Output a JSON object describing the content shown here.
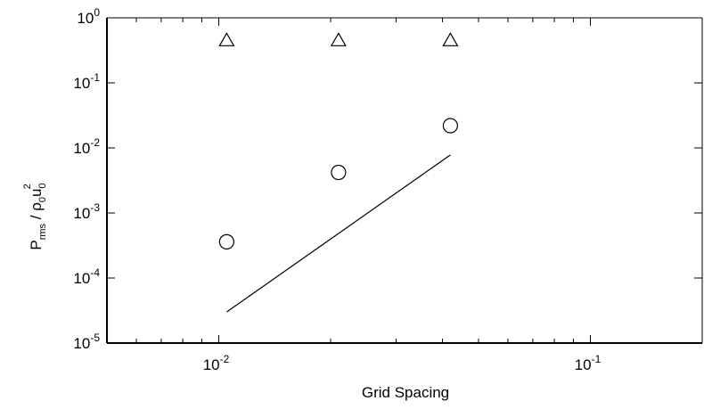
{
  "chart_data": {
    "type": "scatter",
    "title": "",
    "xlabel": "Grid Spacing",
    "ylabel": {
      "p": "P",
      "p_sub": "rms",
      "slash_rho": " / ρ",
      "rho_sub": "0",
      "u": "u",
      "u_sub": "0",
      "u_sup": "2"
    },
    "x_scale": "log",
    "y_scale": "log",
    "xlim": [
      0.005,
      0.2
    ],
    "ylim": [
      1e-05,
      1
    ],
    "grid": false,
    "legend": "none",
    "x_ticks": [
      {
        "value": 0.01,
        "base": "10",
        "exp": "-2"
      },
      {
        "value": 0.1,
        "base": "10",
        "exp": "-1"
      }
    ],
    "y_ticks": [
      {
        "value": 1,
        "base": "10",
        "exp": "0"
      },
      {
        "value": 0.1,
        "base": "10",
        "exp": "-1"
      },
      {
        "value": 0.01,
        "base": "10",
        "exp": "-2"
      },
      {
        "value": 0.001,
        "base": "10",
        "exp": "-3"
      },
      {
        "value": 0.0001,
        "base": "10",
        "exp": "-4"
      },
      {
        "value": 1e-05,
        "base": "10",
        "exp": "-5"
      }
    ],
    "series": [
      {
        "marker": "triangle",
        "x": [
          0.0105,
          0.021,
          0.042
        ],
        "y": [
          0.45,
          0.45,
          0.45
        ]
      },
      {
        "marker": "circle",
        "x": [
          0.0105,
          0.021,
          0.042
        ],
        "y": [
          0.00036,
          0.0042,
          0.022
        ]
      },
      {
        "marker": "line",
        "x": [
          0.0105,
          0.042
        ],
        "y": [
          3e-05,
          0.0078
        ]
      }
    ],
    "colors": {
      "axis": "#000000",
      "marker": "#000000",
      "background": "#ffffff"
    }
  }
}
